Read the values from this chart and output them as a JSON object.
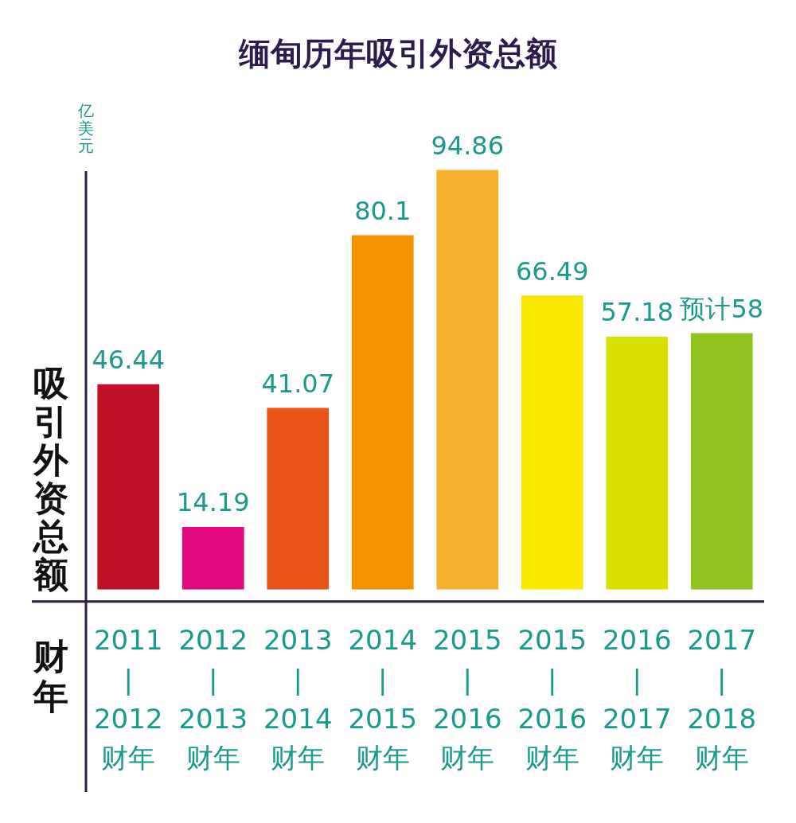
{
  "chart_data": {
    "type": "bar",
    "title": "缅甸历年吸引外资总额",
    "ylabel": "吸引外资总额",
    "xlabel": "财年",
    "annotations": [
      "亿美元"
    ],
    "categories": [
      "2011\n|\n2012\n财年",
      "2012\n|\n2013\n财年",
      "2013\n|\n2014\n财年",
      "2014\n|\n2015\n财年",
      "2015\n|\n2016\n财年",
      "2015\n|\n2016\n财年",
      "2016\n|\n2017\n财年",
      "2017\n|\n2018\n财年"
    ],
    "values": [
      46.44,
      14.19,
      41.07,
      80.1,
      94.86,
      66.49,
      57.18,
      58
    ],
    "colors": [
      "#c01028",
      "#e0097e",
      "#e95316",
      "#f39200",
      "#f5b12e",
      "#f8e800",
      "#d9e000",
      "#8fc31f"
    ],
    "value_labels": [
      "46.44",
      "14.19",
      "41.07",
      "80.1",
      "94.86",
      "66.49",
      "57.18",
      "预计58"
    ]
  }
}
